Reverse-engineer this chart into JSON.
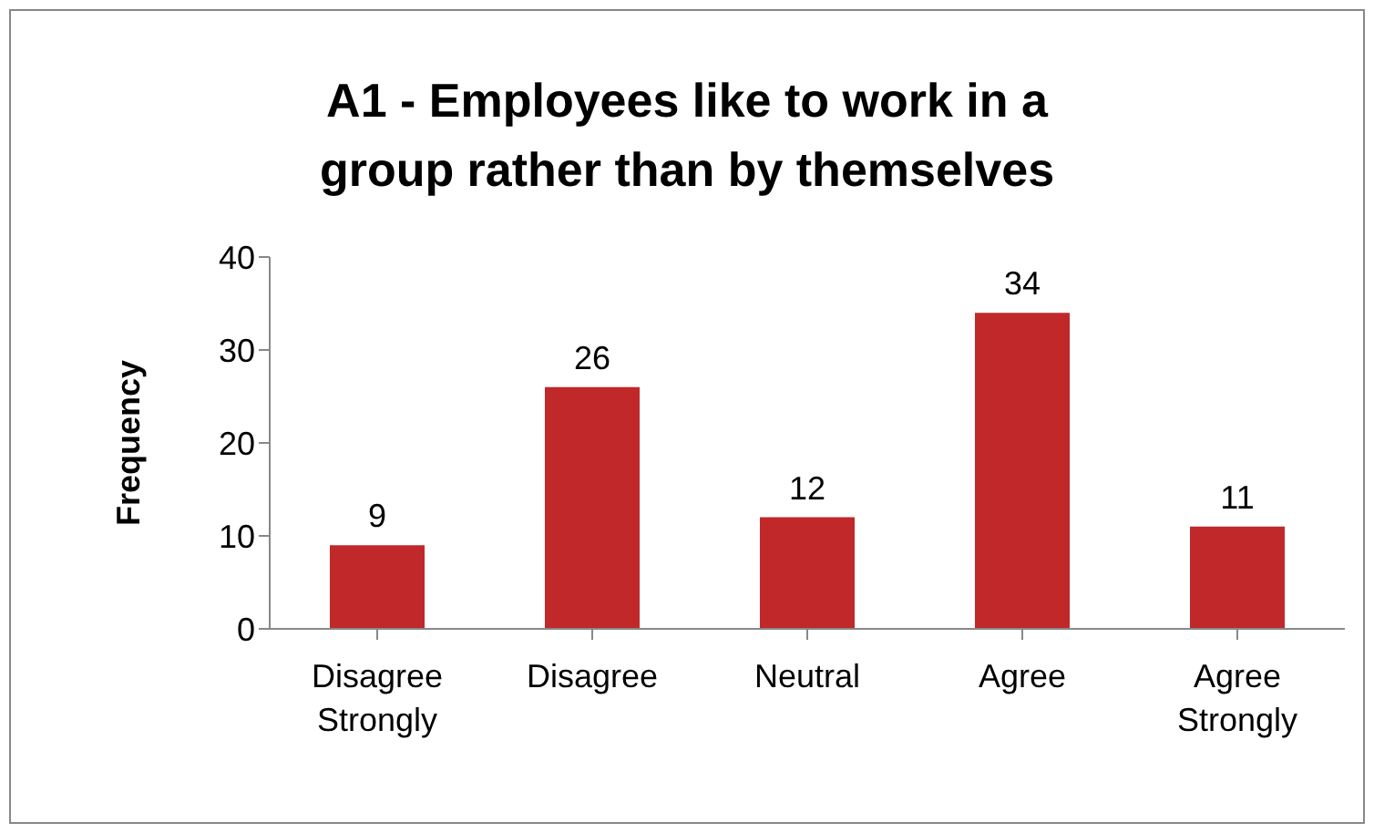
{
  "chart_data": {
    "type": "bar",
    "title": "A1 - Employees like to work in a group rather than by themselves",
    "ylabel": "Frequency",
    "categories": [
      "Disagree Strongly",
      "Disagree",
      "Neutral",
      "Agree",
      "Agree Strongly"
    ],
    "values": [
      9,
      26,
      12,
      34,
      11
    ],
    "color": "#c0282a",
    "ylim": [
      0,
      40
    ],
    "yticks": [
      0,
      10,
      20,
      30,
      40
    ],
    "grid": false,
    "legend": false,
    "data_labels": true
  }
}
